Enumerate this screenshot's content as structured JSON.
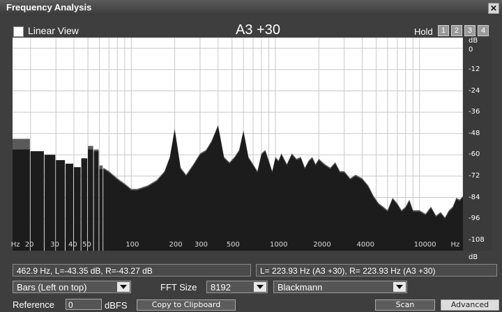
{
  "window": {
    "title": "Frequency Analysis",
    "close_label": "✕"
  },
  "controls": {
    "linear_view_label": "Linear View",
    "linear_view_checked": false,
    "note": "A3 +30",
    "hold_label": "Hold",
    "hold_buttons": [
      "1",
      "2",
      "3",
      "4"
    ]
  },
  "chart_data": {
    "type": "area",
    "x_scale": "log",
    "xlim_hz": [
      15,
      20000
    ],
    "ylim_db": [
      -114,
      6
    ],
    "x_tick_labels": [
      {
        "label": "Hz",
        "hz": 16
      },
      {
        "label": "20",
        "hz": 20
      },
      {
        "label": "30",
        "hz": 30
      },
      {
        "label": "40",
        "hz": 40
      },
      {
        "label": "50",
        "hz": 50
      },
      {
        "label": "100",
        "hz": 100
      },
      {
        "label": "200",
        "hz": 200
      },
      {
        "label": "300",
        "hz": 300
      },
      {
        "label": "500",
        "hz": 500
      },
      {
        "label": "1000",
        "hz": 1000
      },
      {
        "label": "2000",
        "hz": 2000
      },
      {
        "label": "4000",
        "hz": 4000
      },
      {
        "label": "10000",
        "hz": 10000
      },
      {
        "label": "Hz",
        "hz": 18000
      }
    ],
    "y_tick_labels": [
      {
        "label": "dB",
        "db": 4
      },
      {
        "label": "0",
        "db": -1
      },
      {
        "label": "-12",
        "db": -12
      },
      {
        "label": "-24",
        "db": -24
      },
      {
        "label": "-36",
        "db": -36
      },
      {
        "label": "-48",
        "db": -48
      },
      {
        "label": "-60",
        "db": -60
      },
      {
        "label": "-72",
        "db": -72
      },
      {
        "label": "-84",
        "db": -84
      },
      {
        "label": "-96",
        "db": -96
      },
      {
        "label": "-108",
        "db": -108
      },
      {
        "label": "dB",
        "db": -118
      }
    ],
    "bars": [
      {
        "x0": 15,
        "x1": 20,
        "left": -57,
        "right": -51
      },
      {
        "x0": 20,
        "x1": 25,
        "left": -58,
        "right": -58
      },
      {
        "x0": 25,
        "x1": 30,
        "left": -60,
        "right": -60
      },
      {
        "x0": 30,
        "x1": 35,
        "left": -63,
        "right": -63
      },
      {
        "x0": 35,
        "x1": 40,
        "left": -65,
        "right": -65
      },
      {
        "x0": 40,
        "x1": 45,
        "left": -67,
        "right": -67
      },
      {
        "x0": 45,
        "x1": 50,
        "left": -62,
        "right": -62
      },
      {
        "x0": 50,
        "x1": 55,
        "left": -57,
        "right": -55
      },
      {
        "x0": 55,
        "x1": 60,
        "left": -58,
        "right": -57
      },
      {
        "x0": 60,
        "x1": 64,
        "left": -68,
        "right": -66
      }
    ],
    "spectrum": [
      [
        64,
        -68
      ],
      [
        70,
        -70
      ],
      [
        80,
        -74
      ],
      [
        90,
        -77
      ],
      [
        100,
        -80
      ],
      [
        110,
        -80
      ],
      [
        130,
        -78
      ],
      [
        150,
        -75
      ],
      [
        170,
        -70
      ],
      [
        185,
        -62
      ],
      [
        200,
        -46
      ],
      [
        220,
        -68
      ],
      [
        240,
        -72
      ],
      [
        270,
        -66
      ],
      [
        300,
        -60
      ],
      [
        330,
        -58
      ],
      [
        360,
        -53
      ],
      [
        400,
        -44
      ],
      [
        440,
        -62
      ],
      [
        480,
        -65
      ],
      [
        520,
        -62
      ],
      [
        560,
        -58
      ],
      [
        600,
        -47
      ],
      [
        650,
        -62
      ],
      [
        700,
        -66
      ],
      [
        750,
        -70
      ],
      [
        800,
        -60
      ],
      [
        850,
        -58
      ],
      [
        900,
        -64
      ],
      [
        950,
        -70
      ],
      [
        1000,
        -62
      ],
      [
        1050,
        -64
      ],
      [
        1100,
        -60
      ],
      [
        1200,
        -66
      ],
      [
        1300,
        -60
      ],
      [
        1400,
        -63
      ],
      [
        1500,
        -62
      ],
      [
        1600,
        -68
      ],
      [
        1700,
        -64
      ],
      [
        1800,
        -62
      ],
      [
        1900,
        -66
      ],
      [
        2000,
        -63
      ],
      [
        2200,
        -66
      ],
      [
        2400,
        -68
      ],
      [
        2600,
        -65
      ],
      [
        2800,
        -70
      ],
      [
        3000,
        -70
      ],
      [
        3300,
        -74
      ],
      [
        3600,
        -72
      ],
      [
        4000,
        -74
      ],
      [
        4400,
        -78
      ],
      [
        4800,
        -84
      ],
      [
        5200,
        -88
      ],
      [
        5600,
        -90
      ],
      [
        6000,
        -92
      ],
      [
        6500,
        -85
      ],
      [
        7000,
        -88
      ],
      [
        7500,
        -92
      ],
      [
        8000,
        -90
      ],
      [
        8500,
        -86
      ],
      [
        9000,
        -92
      ],
      [
        10000,
        -92
      ],
      [
        11000,
        -94
      ],
      [
        12000,
        -90
      ],
      [
        13000,
        -95
      ],
      [
        14000,
        -93
      ],
      [
        15000,
        -96
      ],
      [
        16000,
        -92
      ],
      [
        17000,
        -90
      ],
      [
        18000,
        -85
      ],
      [
        19000,
        -86
      ],
      [
        20000,
        -84
      ]
    ],
    "colors": {
      "left": "#1c1c1c",
      "right": "#5a5a5a",
      "grid": "#c8c8c8",
      "background": "#ffffff"
    }
  },
  "status": {
    "cursor": "462.9 Hz, L=-43.35 dB, R=-43.27 dB",
    "peak": "L= 223.93 Hz (A3 +30), R= 223.93 Hz (A3 +30)"
  },
  "options": {
    "display_mode": "Bars (Left on top)",
    "fft_size_label": "FFT Size",
    "fft_size": "8192",
    "window": "Blackmann"
  },
  "bottom": {
    "reference_label": "Reference",
    "reference_value": "0",
    "dbfs_label": "dBFS",
    "copy_label": "Copy to Clipboard",
    "scan_label": "Scan",
    "advanced_label": "Advanced"
  }
}
